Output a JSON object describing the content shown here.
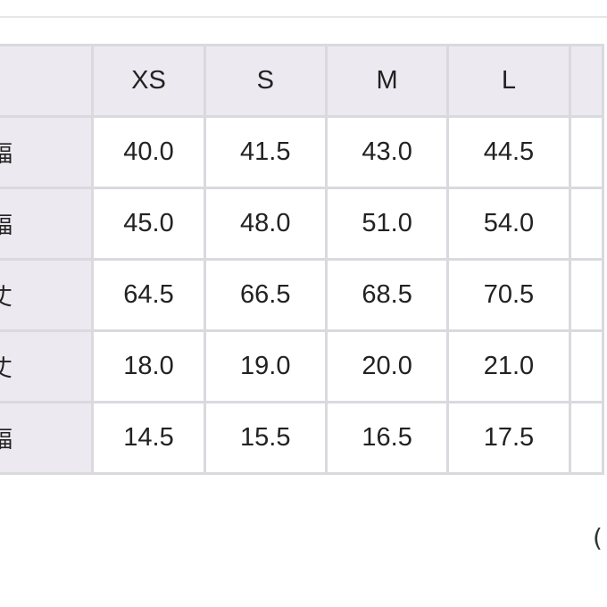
{
  "table": {
    "headers": [
      "XS",
      "S",
      "M",
      "L"
    ],
    "rows": [
      {
        "label": "幅",
        "values": [
          "40.0",
          "41.5",
          "43.0",
          "44.5"
        ]
      },
      {
        "label": "幅",
        "values": [
          "45.0",
          "48.0",
          "51.0",
          "54.0"
        ]
      },
      {
        "label": "丈",
        "values": [
          "64.5",
          "66.5",
          "68.5",
          "70.5"
        ]
      },
      {
        "label": "丈",
        "values": [
          "18.0",
          "19.0",
          "20.0",
          "21.0"
        ]
      },
      {
        "label": "幅",
        "values": [
          "14.5",
          "15.5",
          "16.5",
          "17.5"
        ]
      }
    ]
  },
  "footnote": "("
}
